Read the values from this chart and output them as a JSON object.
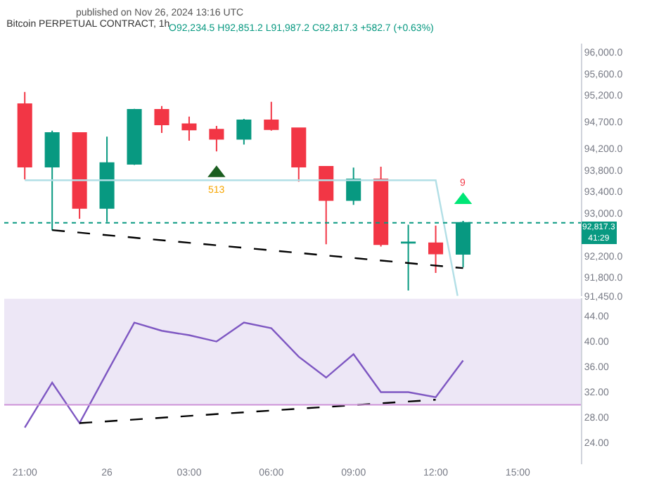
{
  "chart_data": [
    {
      "type": "candlestick",
      "title": "Bitcoin PERPETUAL CONTRACT, 1h",
      "subtitle": "published on Nov 26, 2024 13:16 UTC",
      "x": [
        "2024-11-25T21:00",
        "2024-11-25T22:00",
        "2024-11-25T23:00",
        "2024-11-26T00:00",
        "2024-11-26T01:00",
        "2024-11-26T02:00",
        "2024-11-26T03:00",
        "2024-11-26T04:00",
        "2024-11-26T05:00",
        "2024-11-26T06:00",
        "2024-11-26T07:00",
        "2024-11-26T08:00",
        "2024-11-26T09:00",
        "2024-11-26T10:00",
        "2024-11-26T11:00",
        "2024-11-26T12:00",
        "2024-11-26T13:00"
      ],
      "ohlc": [
        [
          95031,
          95256,
          93628,
          93862
        ],
        [
          93862,
          94537,
          92676,
          94494
        ],
        [
          94494,
          94494,
          92892,
          93091
        ],
        [
          93091,
          94425,
          92832,
          93931
        ],
        [
          93914,
          94944,
          93897,
          94927
        ],
        [
          94927,
          94996,
          94494,
          94650
        ],
        [
          94658,
          94797,
          94347,
          94555
        ],
        [
          94555,
          94624,
          94148,
          94381
        ],
        [
          94381,
          94754,
          94277,
          94728
        ],
        [
          94728,
          95074,
          94537,
          94563
        ],
        [
          94580,
          94580,
          93585,
          93862
        ],
        [
          93862,
          93862,
          92416,
          93239
        ],
        [
          93239,
          93845,
          93152,
          93628
        ],
        [
          93628,
          93862,
          92373,
          92416
        ],
        [
          92442,
          92780,
          91551,
          92450
        ],
        [
          92434,
          92763,
          91880,
          92243
        ],
        [
          92234.5,
          92851.2,
          91987.2,
          92817.3
        ]
      ],
      "series": [
        {
          "type": "scatter",
          "x": [
            "2024-11-26T04:00",
            "2024-11-26T13:00"
          ],
          "values": [
            93740,
            93240
          ],
          "colors": [
            "#1b5e20",
            "#00e676"
          ],
          "marker": "triangle"
        },
        {
          "type": "line",
          "x": [
            "2024-11-25T21:00",
            "2024-11-26T12:00",
            "2024-11-26T12:48"
          ],
          "values": [
            93610,
            93610,
            91450
          ],
          "color": "#b2dfe6"
        },
        {
          "type": "line",
          "x": [
            "2024-11-25T22:00",
            "2024-11-26T13:00"
          ],
          "values": [
            92680,
            91970
          ],
          "color": "#000000",
          "line_style": "dashed"
        }
      ],
      "ylim": [
        91450,
        96160
      ],
      "xlim": [
        "2024-11-25T20:15",
        "2024-11-26T17:18"
      ],
      "yticks": [
        {
          "value": 96000,
          "label": "96,000.0"
        },
        {
          "value": 95600,
          "label": "95,600.0"
        },
        {
          "value": 95200,
          "label": "95,200.0"
        },
        {
          "value": 94700,
          "label": "94,700.0"
        },
        {
          "value": 94200,
          "label": "94,200.0"
        },
        {
          "value": 93800,
          "label": "93,800.0"
        },
        {
          "value": 93400,
          "label": "93,400.0"
        },
        {
          "value": 93000,
          "label": "93,000.0"
        },
        {
          "value": 92200,
          "label": "92,200.0"
        },
        {
          "value": 91800,
          "label": "91,800.0"
        },
        {
          "value": 91450,
          "label": "91,450.0"
        }
      ],
      "ref_lines": [
        {
          "axis": "y",
          "value": 92817.3,
          "label": "92,817.3\n41:29",
          "color": "#089981",
          "line_style": "dotted"
        }
      ],
      "annotations": [
        "O92,234.5 H92,851.2 L91,987.2 C92,817.3 +582.7 (+0.63%)",
        {
          "text": "513",
          "x": "2024-11-26T04:00",
          "y": 93740
        },
        {
          "text": "9",
          "x": "2024-11-26T13:00",
          "y": 93240
        }
      ],
      "tick_labels": "y",
      "grid": false
    },
    {
      "type": "line",
      "x": [
        "2024-11-25T21:00",
        "2024-11-25T22:00",
        "2024-11-25T23:00",
        "2024-11-26T00:00",
        "2024-11-26T01:00",
        "2024-11-26T02:00",
        "2024-11-26T03:00",
        "2024-11-26T04:00",
        "2024-11-26T05:00",
        "2024-11-26T06:00",
        "2024-11-26T07:00",
        "2024-11-26T08:00",
        "2024-11-26T09:00",
        "2024-11-26T10:00",
        "2024-11-26T11:00",
        "2024-11-26T12:00",
        "2024-11-26T13:00"
      ],
      "series": [
        {
          "color": "#7e57c2",
          "values": [
            26.4,
            33.5,
            27.1,
            35.1,
            43.0,
            41.7,
            41.0,
            40.0,
            43.0,
            42.1,
            37.6,
            34.3,
            38.0,
            32.0,
            32.0,
            31.2,
            37.0
          ]
        },
        {
          "type": "line",
          "x": [
            "2024-11-25T23:00",
            "2024-11-26T12:00"
          ],
          "values": [
            27.1,
            30.8
          ],
          "color": "#000000",
          "line_style": "dashed"
        }
      ],
      "xlim": [
        "2024-11-25T20:15",
        "2024-11-26T17:18"
      ],
      "ylim": [
        20.6,
        46.8
      ],
      "xticks": [
        {
          "value": "2024-11-25T21:00",
          "label": "21:00"
        },
        {
          "value": "2024-11-26T00:00",
          "label": "26"
        },
        {
          "value": "2024-11-26T03:00",
          "label": "03:00"
        },
        {
          "value": "2024-11-26T06:00",
          "label": "06:00"
        },
        {
          "value": "2024-11-26T09:00",
          "label": "09:00"
        },
        {
          "value": "2024-11-26T12:00",
          "label": "12:00"
        },
        {
          "value": "2024-11-26T15:00",
          "label": "15:00"
        }
      ],
      "yticks": [
        {
          "value": 44,
          "label": "44.00"
        },
        {
          "value": 40,
          "label": "40.00"
        },
        {
          "value": 36,
          "label": "36.00"
        },
        {
          "value": 32,
          "label": "32.00"
        },
        {
          "value": 28,
          "label": "28.00"
        },
        {
          "value": 24,
          "label": "24.00"
        }
      ],
      "bands": [
        {
          "axis": "y",
          "from": 30,
          "to": 46.8,
          "color": "#ede7f6"
        }
      ],
      "ref_lines": [
        {
          "axis": "y",
          "value": 30,
          "color": "#ce93d8"
        }
      ],
      "grid": false
    }
  ]
}
